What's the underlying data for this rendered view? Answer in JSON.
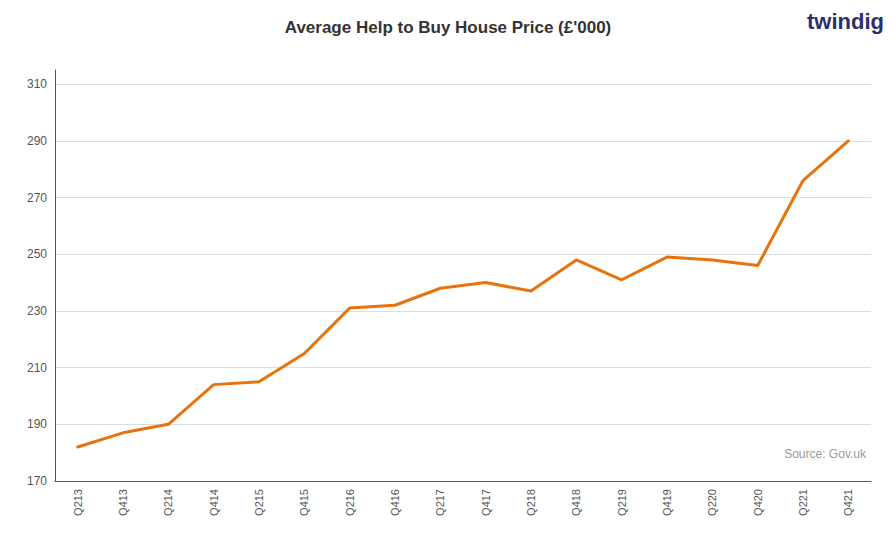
{
  "chart_data": {
    "type": "line",
    "title": "Average Help to Buy House Price (£'000)",
    "categories": [
      "Q213",
      "Q413",
      "Q214",
      "Q414",
      "Q215",
      "Q415",
      "Q216",
      "Q416",
      "Q217",
      "Q417",
      "Q218",
      "Q418",
      "Q219",
      "Q419",
      "Q220",
      "Q420",
      "Q221",
      "Q421"
    ],
    "values": [
      182,
      187,
      190,
      204,
      205,
      215,
      231,
      232,
      238,
      240,
      237,
      248,
      241,
      249,
      248,
      246,
      276,
      290
    ],
    "color": "#E8720C",
    "ylim": [
      170,
      315
    ],
    "yticks": [
      170,
      190,
      210,
      230,
      250,
      270,
      290,
      310
    ],
    "grid": true,
    "annotations": [
      "Source: Gov.uk",
      "twindig"
    ]
  }
}
